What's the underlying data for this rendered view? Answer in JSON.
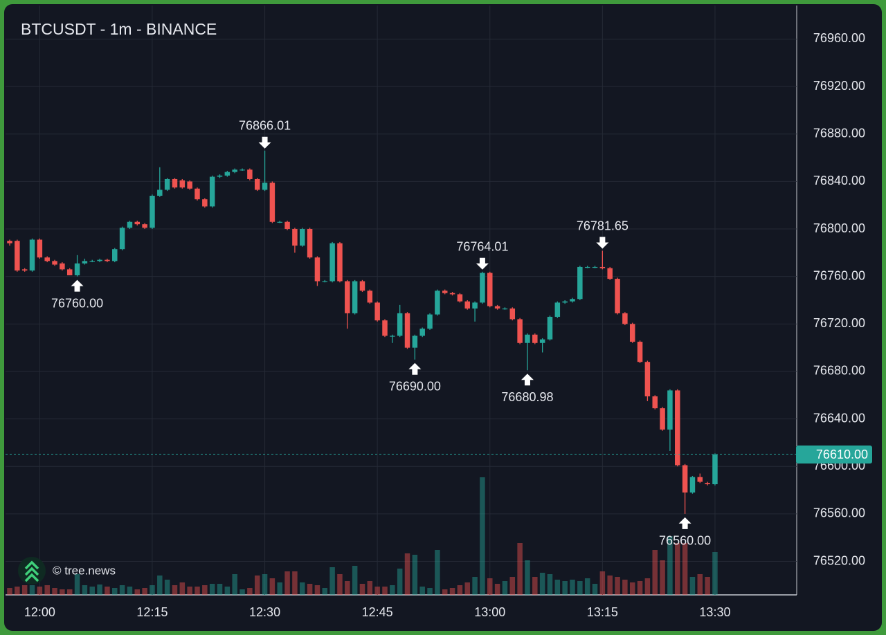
{
  "chart_data": {
    "type": "candlestick",
    "title": "BTCUSDT - 1m - BINANCE",
    "watermark": "© tree.news",
    "categories": [
      null,
      null,
      null,
      null,
      "12:00",
      null,
      null,
      null,
      null,
      null,
      null,
      null,
      null,
      null,
      null,
      null,
      null,
      null,
      null,
      "12:15",
      null,
      null,
      null,
      null,
      null,
      null,
      null,
      null,
      null,
      null,
      null,
      null,
      null,
      null,
      "12:30",
      null,
      null,
      null,
      null,
      null,
      null,
      null,
      null,
      null,
      null,
      null,
      null,
      null,
      null,
      "12:45",
      null,
      null,
      null,
      null,
      null,
      null,
      null,
      null,
      null,
      null,
      null,
      null,
      null,
      null,
      "13:00",
      null,
      null,
      null,
      null,
      null,
      null,
      null,
      null,
      null,
      null,
      null,
      null,
      null,
      null,
      "13:15",
      null,
      null,
      null,
      null,
      null,
      null,
      null,
      null,
      null,
      null,
      null,
      null,
      null,
      null,
      "13:30"
    ],
    "open": [
      76790,
      76790,
      76766,
      76765,
      76791,
      76776,
      76773,
      76771,
      76766,
      76761,
      76771,
      76773,
      76773,
      76774,
      76773,
      76783,
      76801,
      76806,
      76804,
      76801,
      76828,
      76833,
      76842,
      76841,
      76840,
      76834,
      76825,
      76819,
      76844,
      76845,
      76848,
      76850,
      76850,
      76842,
      76833,
      76839,
      76806,
      76806,
      76800,
      76786,
      76800,
      76776,
      76756,
      76756,
      76788,
      76756,
      76729,
      76756,
      76748,
      76738,
      76723,
      76710,
      76710,
      76729,
      76700,
      76710,
      76716,
      76728,
      76748,
      76746,
      76745,
      76739,
      76733,
      76738,
      76763,
      76735,
      76733,
      76733,
      76724,
      76704,
      76711,
      76704,
      76707,
      76726,
      76738,
      76739,
      76741,
      76768,
      76768,
      76768,
      76767,
      76758,
      76729,
      76720,
      76705,
      76688,
      76659,
      76649,
      76631,
      76664,
      76601,
      76578,
      76591,
      76586,
      76585
    ],
    "high": [
      76791,
      76791,
      76767,
      76792,
      76792,
      76777,
      76774,
      76772,
      76767,
      76778,
      76775,
      76774,
      76775,
      76775,
      76784,
      76802,
      76807,
      76807,
      76805,
      76829,
      76852,
      76843,
      76843,
      76842,
      76841,
      76835,
      76826,
      76845,
      76846,
      76849,
      76851,
      76851,
      76851,
      76843,
      76866.01,
      76840,
      76807,
      76807,
      76801,
      76801,
      76801,
      76777,
      76757,
      76789,
      76789,
      76757,
      76757,
      76757,
      76749,
      76739,
      76724,
      76711,
      76736,
      76730,
      76711,
      76717,
      76729,
      76749,
      76749,
      76747,
      76746,
      76740,
      76739,
      76764.01,
      76764,
      76736,
      76734,
      76734,
      76725,
      76712,
      76712,
      76708,
      76727,
      76739,
      76740,
      76742,
      76769,
      76769,
      76769,
      76781.65,
      76768,
      76759,
      76730,
      76721,
      76706,
      76689,
      76660,
      76650,
      76665,
      76665,
      76602,
      76592,
      76594,
      76587,
      76611
    ],
    "low": [
      76786,
      76764,
      76764,
      76764,
      76775,
      76772,
      76769,
      76765,
      76761,
      76760,
      76770,
      76772,
      76772,
      76772,
      76772,
      76782,
      76800,
      76803,
      76800,
      76800,
      76827,
      76832,
      76834,
      76834,
      76833,
      76824,
      76818,
      76818,
      76843,
      76844,
      76847,
      76849,
      76841,
      76832,
      76832,
      76805,
      76805,
      76799,
      76780,
      76785,
      76775,
      76752,
      76755,
      76755,
      76755,
      76716,
      76728,
      76747,
      76737,
      76722,
      76709,
      76704,
      76709,
      76699,
      76690,
      76709,
      76715,
      76727,
      76745,
      76744,
      76738,
      76732,
      76722,
      76737,
      76734,
      76732,
      76732,
      76723,
      76703,
      76680.98,
      76703,
      76696,
      76706,
      76725,
      76737,
      76738,
      76740,
      76767,
      76767,
      76766,
      76757,
      76728,
      76719,
      76704,
      76687,
      76655,
      76648,
      76630,
      76613,
      76600,
      76560,
      76577,
      76586,
      76584,
      76584
    ],
    "close": [
      76788,
      76765,
      76765,
      76791,
      76776,
      76773,
      76770,
      76766,
      76761,
      76771,
      76773,
      76773,
      76774,
      76773,
      76783,
      76801,
      76806,
      76804,
      76801,
      76828,
      76833,
      76842,
      76835,
      76835,
      76834,
      76825,
      76819,
      76844,
      76845,
      76848,
      76850,
      76850,
      76842,
      76833,
      76839,
      76806,
      76806,
      76800,
      76786,
      76800,
      76776,
      76756,
      76756,
      76788,
      76756,
      76729,
      76756,
      76748,
      76738,
      76723,
      76710,
      76710,
      76729,
      76700,
      76710,
      76716,
      76728,
      76748,
      76746,
      76745,
      76739,
      76733,
      76738,
      76763,
      76735,
      76733,
      76733,
      76724,
      76704,
      76711,
      76704,
      76707,
      76726,
      76738,
      76739,
      76741,
      76768,
      76768,
      76768,
      76767,
      76758,
      76729,
      76720,
      76705,
      76688,
      76659,
      76649,
      76631,
      76664,
      76601,
      76578,
      76591,
      76587,
      76585,
      76610
    ],
    "volume": [
      10,
      12,
      14,
      14,
      12,
      14,
      10,
      8,
      8,
      30,
      14,
      12,
      15,
      12,
      10,
      14,
      12,
      8,
      10,
      14,
      28,
      22,
      14,
      18,
      12,
      12,
      14,
      16,
      16,
      12,
      30,
      8,
      10,
      28,
      30,
      24,
      18,
      34,
      34,
      18,
      16,
      14,
      10,
      40,
      30,
      20,
      42,
      16,
      20,
      12,
      12,
      14,
      38,
      60,
      58,
      12,
      10,
      65,
      8,
      10,
      14,
      18,
      26,
      170,
      24,
      16,
      20,
      26,
      75,
      50,
      26,
      32,
      30,
      22,
      20,
      22,
      20,
      24,
      16,
      34,
      28,
      26,
      22,
      18,
      20,
      24,
      65,
      50,
      85,
      75,
      75,
      26,
      30,
      26,
      62
    ],
    "up_color": "#26a69a",
    "down_color": "#ef5350",
    "ylim": [
      76491.76,
      76988.24
    ],
    "yticks": [
      {
        "value": 76520,
        "label": "76520.00"
      },
      {
        "value": 76560,
        "label": "76560.00"
      },
      {
        "value": 76600,
        "label": "76600.00"
      },
      {
        "value": 76640,
        "label": "76640.00"
      },
      {
        "value": 76680,
        "label": "76680.00"
      },
      {
        "value": 76720,
        "label": "76720.00"
      },
      {
        "value": 76760,
        "label": "76760.00"
      },
      {
        "value": 76800,
        "label": "76800.00"
      },
      {
        "value": 76840,
        "label": "76840.00"
      },
      {
        "value": 76880,
        "label": "76880.00"
      },
      {
        "value": 76920,
        "label": "76920.00"
      },
      {
        "value": 76960,
        "label": "76960.00"
      }
    ],
    "grid": true,
    "last_price": {
      "value": 76610,
      "label": "76610.00"
    },
    "markers": [
      {
        "index": 9,
        "value": 76760,
        "label": "76760.00",
        "position": "below"
      },
      {
        "index": 34,
        "value": 76866.01,
        "label": "76866.01",
        "position": "above"
      },
      {
        "index": 54,
        "value": 76690,
        "label": "76690.00",
        "position": "below"
      },
      {
        "index": 63,
        "value": 76764.01,
        "label": "76764.01",
        "position": "above"
      },
      {
        "index": 69,
        "value": 76680.98,
        "label": "76680.98",
        "position": "below"
      },
      {
        "index": 79,
        "value": 76781.65,
        "label": "76781.65",
        "position": "above"
      },
      {
        "index": 90,
        "value": 76560,
        "label": "76560.00",
        "position": "below"
      }
    ]
  }
}
